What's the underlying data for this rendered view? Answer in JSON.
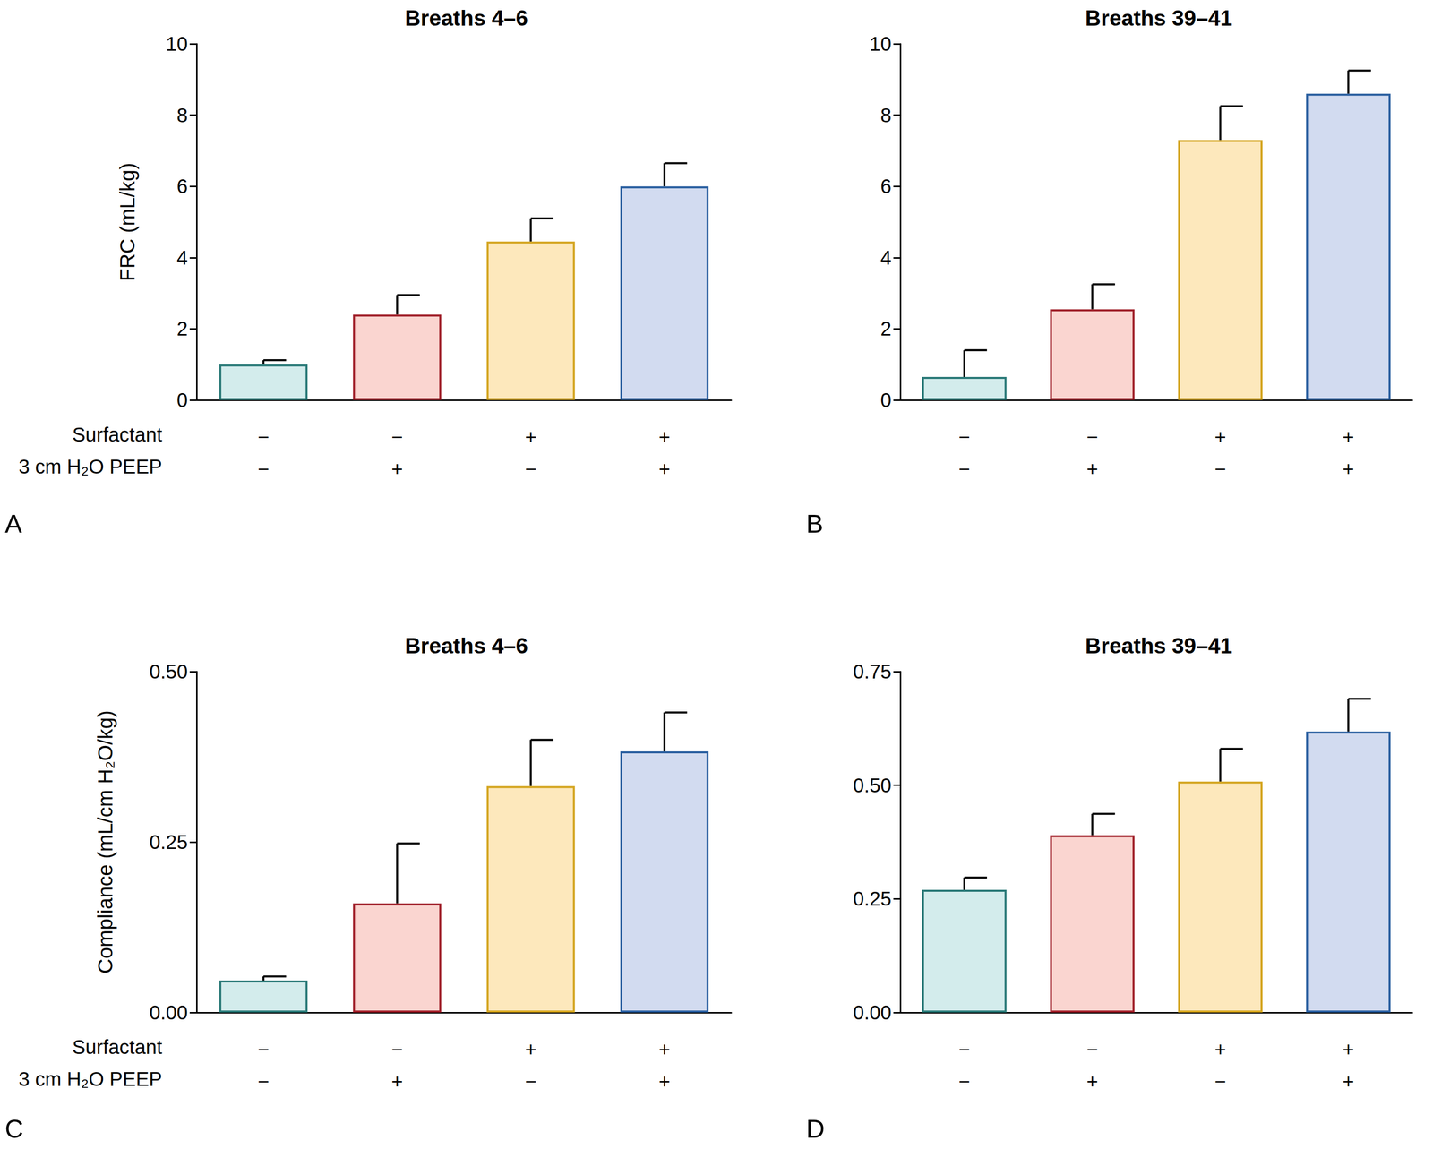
{
  "chart_data": [
    {
      "type": "bar",
      "title": "Breaths 4–6",
      "panel_label": "A",
      "y_label": "FRC (mL/kg)",
      "row_labels": [
        "Surfactant",
        "3 cm H₂O PEEP"
      ],
      "categories": [
        "−\n−",
        "−\n+",
        "+\n−",
        "+\n+"
      ],
      "values": [
        1.0,
        2.4,
        4.45,
        6.0
      ],
      "errors": [
        0.12,
        0.55,
        0.65,
        0.65
      ],
      "colors": [
        "#d3ecec",
        "#fad5d0",
        "#fde8bc",
        "#d2dbf0"
      ],
      "ylim": [
        0,
        10
      ],
      "yticks": [
        0,
        2,
        4,
        6,
        8,
        10
      ],
      "grid": false
    },
    {
      "type": "bar",
      "title": "Breaths 39–41",
      "panel_label": "B",
      "categories": [
        "−\n−",
        "−\n+",
        "+\n−",
        "+\n+"
      ],
      "values": [
        0.65,
        2.55,
        7.3,
        8.6
      ],
      "errors": [
        0.75,
        0.7,
        0.95,
        0.65
      ],
      "colors": [
        "#d3ecec",
        "#fad5d0",
        "#fde8bc",
        "#d2dbf0"
      ],
      "ylim": [
        0,
        10
      ],
      "yticks": [
        0,
        2,
        4,
        6,
        8,
        10
      ],
      "grid": false
    },
    {
      "type": "bar",
      "title": "Breaths 4–6",
      "panel_label": "C",
      "y_label": "Compliance (mL/cm H₂O/kg)",
      "row_labels": [
        "Surfactant",
        "3 cm H₂O PEEP"
      ],
      "categories": [
        "−\n−",
        "−\n+",
        "+\n−",
        "+\n+"
      ],
      "values": [
        0.047,
        0.16,
        0.332,
        0.383
      ],
      "errors": [
        0.006,
        0.088,
        0.068,
        0.057
      ],
      "colors": [
        "#d3ecec",
        "#fad5d0",
        "#fde8bc",
        "#d2dbf0"
      ],
      "ylim": [
        0,
        0.5
      ],
      "yticks": [
        {
          "value": 0,
          "label": "0.00"
        },
        {
          "value": 0.25,
          "label": "0.25"
        },
        {
          "value": 0.5,
          "label": "0.50"
        }
      ],
      "grid": false
    },
    {
      "type": "bar",
      "title": "Breaths 39–41",
      "panel_label": "D",
      "categories": [
        "−\n−",
        "−\n+",
        "+\n−",
        "+\n+"
      ],
      "values": [
        0.27,
        0.39,
        0.508,
        0.618
      ],
      "errors": [
        0.027,
        0.047,
        0.072,
        0.072
      ],
      "colors": [
        "#d3ecec",
        "#fad5d0",
        "#fde8bc",
        "#d2dbf0"
      ],
      "ylim": [
        0,
        0.75
      ],
      "yticks": [
        {
          "value": 0,
          "label": "0.00"
        },
        {
          "value": 0.25,
          "label": "0.25"
        },
        {
          "value": 0.5,
          "label": "0.50"
        },
        {
          "value": 0.75,
          "label": "0.75"
        }
      ],
      "grid": false
    }
  ]
}
